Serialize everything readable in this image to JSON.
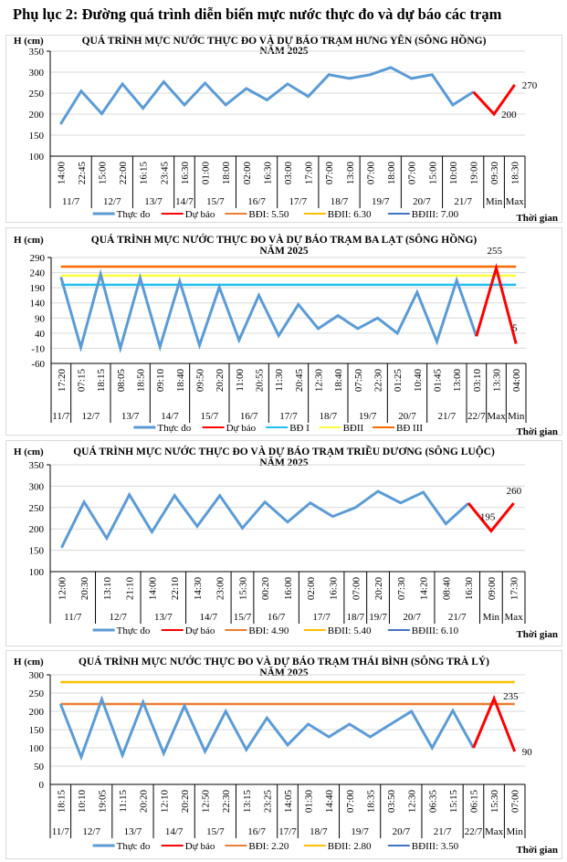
{
  "page_title": "Phụ lục 2: Đường quá trình diễn biến mực nước thực đo và dự báo các trạm",
  "chart_data": [
    {
      "type": "line",
      "title": "QUÁ TRÌNH MỰC NƯỚC THỰC ĐO VÀ DỰ BÁO TRẠM HƯNG YÊN  (SÔNG HỒNG)",
      "subtitle": "NĂM 2025",
      "ylabel": "H (cm)",
      "xlabel": "Thời gian",
      "ylim": [
        100,
        350
      ],
      "yticks": [
        100,
        150,
        200,
        250,
        300,
        350
      ],
      "grid": true,
      "time_labels": [
        "14:00",
        "22:45",
        "15:00",
        "22:00",
        "16:15",
        "23:45",
        "16:30",
        "01:00",
        "18:00",
        "02:00",
        "16:30",
        "03:00",
        "17:00",
        "07:00",
        "13:00",
        "07:00",
        "18:00",
        "07:00",
        "15:00",
        "10:00",
        "19:00",
        "09:30",
        "18:30"
      ],
      "date_groups": [
        {
          "label": "11/7",
          "count": 2
        },
        {
          "label": "12/7",
          "count": 2
        },
        {
          "label": "13/7",
          "count": 2
        },
        {
          "label": "14/7",
          "count": 1
        },
        {
          "label": "15/7",
          "count": 2
        },
        {
          "label": "16/7",
          "count": 2
        },
        {
          "label": "17/7",
          "count": 2
        },
        {
          "label": "18/7",
          "count": 2
        },
        {
          "label": "19/7",
          "count": 2
        },
        {
          "label": "20/7",
          "count": 2
        },
        {
          "label": "21/7",
          "count": 2
        },
        {
          "label": "Min",
          "count": 1
        },
        {
          "label": "Max",
          "count": 1
        }
      ],
      "series": [
        {
          "name": "Thực đo",
          "color": "#5b9bd5",
          "start": 0,
          "values": [
            176,
            255,
            201,
            272,
            214,
            277,
            222,
            274,
            222,
            261,
            234,
            272,
            242,
            294,
            285,
            294,
            311,
            285,
            294,
            222,
            253
          ]
        },
        {
          "name": "Dự báo",
          "color": "#ff0000",
          "start": 20,
          "values": [
            253,
            200,
            270
          ]
        }
      ],
      "reference_lines": [],
      "legend": [
        {
          "name": "Thực đo",
          "color": "#5b9bd5"
        },
        {
          "name": "Dự báo",
          "color": "#ff0000"
        },
        {
          "name": "BĐI: 5.50",
          "color": "#ed7d31"
        },
        {
          "name": "BĐII: 6.30",
          "color": "#ffc000"
        },
        {
          "name": "BĐIII: 7.00",
          "color": "#4472c4"
        }
      ],
      "annotations": [
        {
          "text": "270",
          "index": 22,
          "value": 270
        },
        {
          "text": "200",
          "index": 21,
          "value": 200
        }
      ]
    },
    {
      "type": "line",
      "title": "QUÁ TRÌNH MỰC NƯỚC THỰC ĐO VÀ DỰ BÁO TRẠM BA LẠT (SÔNG HỒNG)",
      "subtitle": "NĂM 2025",
      "ylabel": "H (cm)",
      "xlabel": "Thời gian",
      "ylim": [
        -60,
        290
      ],
      "yticks": [
        -60,
        -10,
        40,
        90,
        140,
        190,
        240,
        290
      ],
      "grid": true,
      "time_labels": [
        "17:20",
        "07:15",
        "18:15",
        "08:05",
        "18:50",
        "09:10",
        "18:40",
        "09:50",
        "20:20",
        "11:00",
        "20:55",
        "11:30",
        "20:45",
        "12:30",
        "18:40",
        "07:50",
        "22:30",
        "01:25",
        "10:40",
        "01:45",
        "13:00",
        "03:10",
        "13:30",
        "04:00"
      ],
      "date_groups": [
        {
          "label": "11/7",
          "count": 1
        },
        {
          "label": "12/7",
          "count": 2
        },
        {
          "label": "13/7",
          "count": 2
        },
        {
          "label": "14/7",
          "count": 2
        },
        {
          "label": "15/7",
          "count": 2
        },
        {
          "label": "16/7",
          "count": 2
        },
        {
          "label": "17/7",
          "count": 2
        },
        {
          "label": "18/7",
          "count": 2
        },
        {
          "label": "19/7",
          "count": 2
        },
        {
          "label": "20/7",
          "count": 2
        },
        {
          "label": "21/7",
          "count": 2
        },
        {
          "label": "22/7",
          "count": 1
        },
        {
          "label": "Max",
          "count": 1
        },
        {
          "label": "Min",
          "count": 1
        }
      ],
      "series": [
        {
          "name": "Thực đo",
          "color": "#5b9bd5",
          "start": 0,
          "values": [
            225,
            -7,
            235,
            -10,
            223,
            -5,
            212,
            0,
            192,
            17,
            165,
            32,
            135,
            55,
            98,
            55,
            90,
            40,
            175,
            12,
            215,
            30
          ]
        },
        {
          "name": "Dự báo",
          "color": "#ff0000",
          "start": 21,
          "values": [
            30,
            255,
            5
          ]
        }
      ],
      "reference_lines": [
        {
          "name": "BĐ I",
          "value": 200,
          "color": "#22c0f0"
        },
        {
          "name": "BĐII",
          "value": 230,
          "color": "#ffff40"
        },
        {
          "name": "BĐ III",
          "value": 260,
          "color": "#ff6a00"
        }
      ],
      "legend": [
        {
          "name": "Thực đo",
          "color": "#5b9bd5"
        },
        {
          "name": "Dự báo",
          "color": "#ff0000"
        },
        {
          "name": "BĐ I",
          "color": "#22c0f0"
        },
        {
          "name": "BĐII",
          "color": "#ffff40"
        },
        {
          "name": "BĐ III",
          "color": "#ff6a00"
        }
      ],
      "annotations": [
        {
          "text": "255",
          "index": 22,
          "value": 255
        },
        {
          "text": "5",
          "index": 23,
          "value": 5
        }
      ]
    },
    {
      "type": "line",
      "title": "QUÁ TRÌNH MỰC NƯỚC THỰC ĐO VÀ DỰ BÁO TRẠM TRIỀU DƯƠNG  (SÔNG LUỘC)",
      "subtitle": "NĂM 2025",
      "ylabel": "H (cm)",
      "xlabel": "Thời gian",
      "ylim": [
        100,
        350
      ],
      "yticks": [
        100,
        150,
        200,
        250,
        300,
        350
      ],
      "grid": true,
      "time_labels": [
        "12:00",
        "20:30",
        "13:10",
        "21:10",
        "14:00",
        "22:10",
        "14:30",
        "23:00",
        "15:30",
        "00:20",
        "16:00",
        "02:00",
        "16:30",
        "07:00",
        "20:20",
        "07:30",
        "14:20",
        "08:40",
        "16:30",
        "09:00",
        "17:30"
      ],
      "date_groups": [
        {
          "label": "11/7",
          "count": 2
        },
        {
          "label": "12/7",
          "count": 2
        },
        {
          "label": "13/7",
          "count": 2
        },
        {
          "label": "14/7",
          "count": 2
        },
        {
          "label": "15/7",
          "count": 1
        },
        {
          "label": "16/7",
          "count": 2
        },
        {
          "label": "17/7",
          "count": 2
        },
        {
          "label": "18/7",
          "count": 1
        },
        {
          "label": "19/7",
          "count": 1
        },
        {
          "label": "20/7",
          "count": 2
        },
        {
          "label": "21/7",
          "count": 2
        },
        {
          "label": "Min",
          "count": 1
        },
        {
          "label": "Max",
          "count": 1
        }
      ],
      "series": [
        {
          "name": "Thực đo",
          "color": "#5b9bd5",
          "start": 0,
          "values": [
            156,
            263,
            178,
            280,
            193,
            278,
            206,
            278,
            202,
            263,
            216,
            261,
            229,
            250,
            288,
            261,
            286,
            212,
            260
          ]
        },
        {
          "name": "Dự báo",
          "color": "#ff0000",
          "start": 18,
          "values": [
            260,
            195,
            260
          ]
        }
      ],
      "reference_lines": [],
      "legend": [
        {
          "name": "Thực đo",
          "color": "#5b9bd5"
        },
        {
          "name": "Dự báo",
          "color": "#ff0000"
        },
        {
          "name": "BĐI: 4.90",
          "color": "#ed7d31"
        },
        {
          "name": "BĐII: 5.40",
          "color": "#ffc000"
        },
        {
          "name": "BĐIII: 6.10",
          "color": "#4472c4"
        }
      ],
      "annotations": [
        {
          "text": "260",
          "index": 20,
          "value": 260
        },
        {
          "text": "195",
          "index": 19,
          "value": 195
        }
      ]
    },
    {
      "type": "line",
      "title": "QUÁ TRÌNH MỰC NƯỚC THỰC ĐO VÀ DỰ BÁO TRẠM THÁI BÌNH (SÔNG TRÀ LÝ)",
      "subtitle": "NĂM 2025",
      "ylabel": "H (cm)",
      "xlabel": "Thời gian",
      "ylim": [
        0,
        300
      ],
      "yticks": [
        0,
        50,
        100,
        150,
        200,
        250,
        300
      ],
      "grid": true,
      "time_labels": [
        "18:15",
        "10:10",
        "19:05",
        "11:15",
        "20:20",
        "12:10",
        "20:20",
        "12:50",
        "22:30",
        "13:15",
        "23:25",
        "14:05",
        "01:30",
        "14:40",
        "07:00",
        "18:35",
        "03:50",
        "12:30",
        "06:35",
        "15:15",
        "06:15",
        "15:30",
        "07:00"
      ],
      "date_groups": [
        {
          "label": "11/7",
          "count": 1
        },
        {
          "label": "12/7",
          "count": 2
        },
        {
          "label": "13/7",
          "count": 2
        },
        {
          "label": "14/7",
          "count": 2
        },
        {
          "label": "15/7",
          "count": 2
        },
        {
          "label": "16/7",
          "count": 2
        },
        {
          "label": "17/7",
          "count": 1
        },
        {
          "label": "18/7",
          "count": 2
        },
        {
          "label": "19/7",
          "count": 2
        },
        {
          "label": "20/7",
          "count": 2
        },
        {
          "label": "21/7",
          "count": 2
        },
        {
          "label": "22/7",
          "count": 1
        },
        {
          "label": "Max",
          "count": 1
        },
        {
          "label": "Min",
          "count": 1
        }
      ],
      "series": [
        {
          "name": "Thực đo",
          "color": "#5b9bd5",
          "start": 0,
          "values": [
            220,
            75,
            233,
            80,
            225,
            85,
            215,
            90,
            200,
            95,
            182,
            108,
            165,
            130,
            165,
            130,
            165,
            200,
            100,
            202,
            100
          ]
        },
        {
          "name": "Dự báo",
          "color": "#ff0000",
          "start": 20,
          "values": [
            100,
            235,
            90
          ]
        }
      ],
      "reference_lines": [
        {
          "name": "BĐI: 2.20",
          "value": 220,
          "color": "#ed7d31"
        },
        {
          "name": "BĐII: 2.80",
          "value": 280,
          "color": "#ffc000"
        }
      ],
      "legend": [
        {
          "name": "Thực đo",
          "color": "#5b9bd5"
        },
        {
          "name": "Dự báo",
          "color": "#ff0000"
        },
        {
          "name": "BĐI: 2.20",
          "color": "#ed7d31"
        },
        {
          "name": "BĐII: 2.80",
          "color": "#ffc000"
        },
        {
          "name": "BĐIII: 3.50",
          "color": "#4472c4"
        }
      ],
      "annotations": [
        {
          "text": "235",
          "index": 21,
          "value": 235
        },
        {
          "text": "90",
          "index": 22,
          "value": 90
        }
      ]
    }
  ]
}
